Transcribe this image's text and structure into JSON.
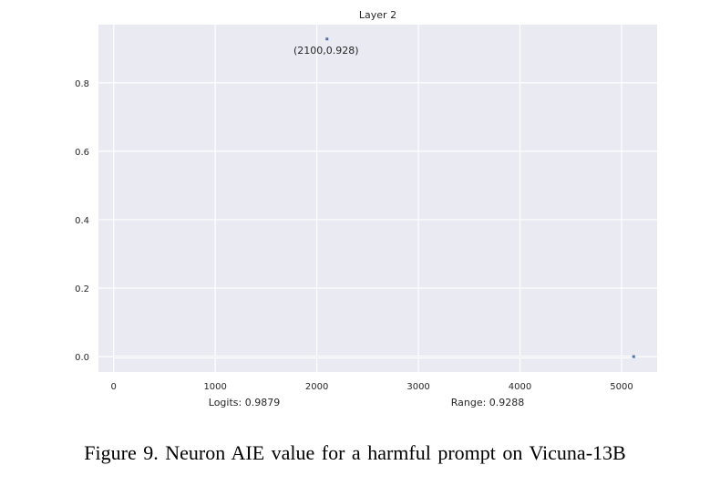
{
  "chart_data": {
    "type": "scatter",
    "title": "Layer 2",
    "xlabel": "",
    "ylabel": "",
    "xlim": [
      -150,
      5350
    ],
    "ylim": [
      -0.045,
      0.97
    ],
    "xticks": [
      0,
      1000,
      2000,
      3000,
      4000,
      5000
    ],
    "xtick_labels": [
      "0",
      "1000",
      "2000",
      "3000",
      "4000",
      "5000"
    ],
    "yticks": [
      0.0,
      0.2,
      0.4,
      0.6,
      0.8
    ],
    "ytick_labels": [
      "0.0",
      "0.2",
      "0.4",
      "0.6",
      "0.8"
    ],
    "grid": true,
    "series": [
      {
        "x_range": [
          0,
          5119
        ],
        "baseline_y": 0.0,
        "points": [
          {
            "x": 2100,
            "y": 0.928
          },
          {
            "x": 5119,
            "y": 0.0
          }
        ]
      }
    ],
    "annotations": [
      {
        "text": "(2100,0.928)",
        "x": 2100,
        "y": 0.928
      }
    ],
    "footnotes": {
      "left": "Logits: 0.9879",
      "right": "Range: 0.9288"
    },
    "colors": {
      "plot_background": "#EAEAF2",
      "grid": "#FFFFFF",
      "marker": "#4C72B0"
    }
  },
  "caption": "Figure 9. Neuron AIE value for a harmful prompt on Vicuna-13B"
}
